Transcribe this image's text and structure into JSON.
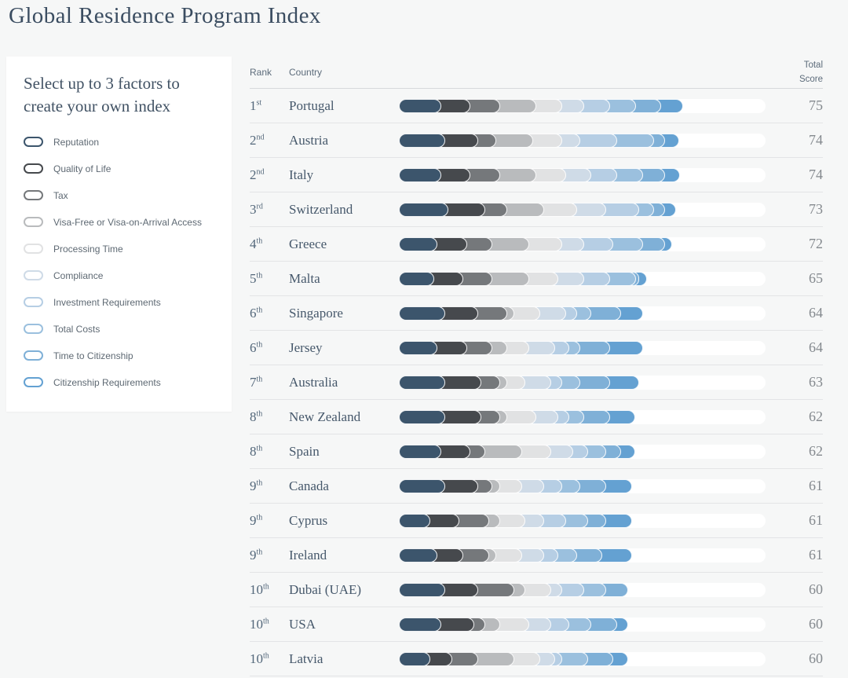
{
  "page": {
    "title": "Global Residence Program Index",
    "background": "#f6f7f7"
  },
  "sidebar": {
    "heading": "Select up to 3 factors to create your own index",
    "factors": [
      {
        "label": "Reputation",
        "color": "#3c556c"
      },
      {
        "label": "Quality of Life",
        "color": "#46494d"
      },
      {
        "label": "Tax",
        "color": "#75787b"
      },
      {
        "label": "Visa-Free or Visa-on-Arrival Access",
        "color": "#b9bbbd"
      },
      {
        "label": "Processing Time",
        "color": "#e1e2e3"
      },
      {
        "label": "Compliance",
        "color": "#cfdbe7"
      },
      {
        "label": "Investment Requirements",
        "color": "#b6cee4"
      },
      {
        "label": "Total Costs",
        "color": "#9bc0de"
      },
      {
        "label": "Time to Citizenship",
        "color": "#7fb0d7"
      },
      {
        "label": "Citizenship Requirements",
        "color": "#64a1d2"
      }
    ]
  },
  "table": {
    "headers": {
      "rank": "Rank",
      "country": "Country",
      "total_score": "Total Score"
    },
    "max_score": 100,
    "rows": [
      {
        "rank": "1",
        "ordinal": "st",
        "country": "Portugal",
        "score": 75,
        "segments": [
          9,
          8,
          8,
          10,
          7,
          6,
          7,
          7,
          7,
          6
        ]
      },
      {
        "rank": "2",
        "ordinal": "nd",
        "country": "Austria",
        "score": 74,
        "segments": [
          10,
          9,
          5,
          10,
          8,
          5,
          10,
          10,
          3,
          4
        ]
      },
      {
        "rank": "2",
        "ordinal": "nd",
        "country": "Italy",
        "score": 74,
        "segments": [
          9,
          8,
          8,
          10,
          8,
          7,
          7,
          7,
          6,
          4
        ]
      },
      {
        "rank": "3",
        "ordinal": "rd",
        "country": "Switzerland",
        "score": 73,
        "segments": [
          11,
          10,
          6,
          10,
          9,
          8,
          9,
          4,
          3,
          3
        ]
      },
      {
        "rank": "4",
        "ordinal": "th",
        "country": "Greece",
        "score": 72,
        "segments": [
          8,
          8,
          7,
          10,
          9,
          6,
          8,
          8,
          6,
          2
        ]
      },
      {
        "rank": "5",
        "ordinal": "th",
        "country": "Malta",
        "score": 65,
        "segments": [
          7,
          8,
          8,
          10,
          8,
          7,
          7,
          7,
          1,
          2
        ]
      },
      {
        "rank": "6",
        "ordinal": "th",
        "country": "Singapore",
        "score": 64,
        "segments": [
          10,
          9,
          8,
          2,
          7,
          7,
          3,
          4,
          8,
          6
        ]
      },
      {
        "rank": "6",
        "ordinal": "th",
        "country": "Jersey",
        "score": 64,
        "segments": [
          8,
          8,
          7,
          4,
          6,
          7,
          4,
          3,
          8,
          9
        ]
      },
      {
        "rank": "7",
        "ordinal": "th",
        "country": "Australia",
        "score": 63,
        "segments": [
          10,
          10,
          5,
          2,
          5,
          7,
          3,
          5,
          8,
          8
        ]
      },
      {
        "rank": "8",
        "ordinal": "th",
        "country": "New Zealand",
        "score": 62,
        "segments": [
          10,
          10,
          5,
          2,
          8,
          6,
          3,
          4,
          7,
          7
        ]
      },
      {
        "rank": "8",
        "ordinal": "th",
        "country": "Spain",
        "score": 62,
        "segments": [
          9,
          8,
          4,
          10,
          8,
          6,
          4,
          5,
          4,
          4
        ]
      },
      {
        "rank": "9",
        "ordinal": "th",
        "country": "Canada",
        "score": 61,
        "segments": [
          10,
          9,
          4,
          2,
          6,
          6,
          5,
          5,
          7,
          7
        ]
      },
      {
        "rank": "9",
        "ordinal": "th",
        "country": "Cyprus",
        "score": 61,
        "segments": [
          6,
          8,
          8,
          3,
          7,
          5,
          6,
          6,
          5,
          7
        ]
      },
      {
        "rank": "9",
        "ordinal": "th",
        "country": "Ireland",
        "score": 61,
        "segments": [
          8,
          7,
          7,
          2,
          7,
          6,
          4,
          5,
          7,
          8
        ]
      },
      {
        "rank": "10",
        "ordinal": "th",
        "country": "Dubai (UAE)",
        "score": 60,
        "segments": [
          10,
          9,
          10,
          3,
          7,
          3,
          6,
          6,
          6,
          0
        ]
      },
      {
        "rank": "10",
        "ordinal": "th",
        "country": "USA",
        "score": 60,
        "segments": [
          9,
          9,
          3,
          4,
          8,
          6,
          5,
          6,
          7,
          3
        ]
      },
      {
        "rank": "10",
        "ordinal": "th",
        "country": "Latvia",
        "score": 60,
        "segments": [
          6,
          6,
          7,
          10,
          7,
          4,
          2,
          7,
          7,
          4
        ]
      }
    ]
  },
  "chart_data": {
    "type": "bar",
    "stacked": true,
    "orientation": "horizontal",
    "title": "Global Residence Program Index",
    "xlabel": "Total Score",
    "xlim": [
      0,
      100
    ],
    "categories": [
      "Portugal",
      "Austria",
      "Italy",
      "Switzerland",
      "Greece",
      "Malta",
      "Singapore",
      "Jersey",
      "Australia",
      "New Zealand",
      "Spain",
      "Canada",
      "Cyprus",
      "Ireland",
      "Dubai (UAE)",
      "USA",
      "Latvia"
    ],
    "totals": [
      75,
      74,
      74,
      73,
      72,
      65,
      64,
      64,
      63,
      62,
      62,
      61,
      61,
      61,
      60,
      60,
      60
    ],
    "series": [
      {
        "name": "Reputation",
        "color": "#3c556c",
        "values": [
          9,
          10,
          9,
          11,
          8,
          7,
          10,
          8,
          10,
          10,
          9,
          10,
          6,
          8,
          10,
          9,
          6
        ]
      },
      {
        "name": "Quality of Life",
        "color": "#46494d",
        "values": [
          8,
          9,
          8,
          10,
          8,
          8,
          9,
          8,
          10,
          10,
          8,
          9,
          8,
          7,
          9,
          9,
          6
        ]
      },
      {
        "name": "Tax",
        "color": "#75787b",
        "values": [
          8,
          5,
          8,
          6,
          7,
          8,
          8,
          7,
          5,
          5,
          4,
          4,
          8,
          7,
          10,
          3,
          7
        ]
      },
      {
        "name": "Visa-Free or Visa-on-Arrival Access",
        "color": "#b9bbbd",
        "values": [
          10,
          10,
          10,
          10,
          10,
          10,
          2,
          4,
          2,
          2,
          10,
          2,
          3,
          2,
          3,
          4,
          10
        ]
      },
      {
        "name": "Processing Time",
        "color": "#e1e2e3",
        "values": [
          7,
          8,
          8,
          9,
          9,
          8,
          7,
          6,
          5,
          8,
          8,
          6,
          7,
          7,
          7,
          8,
          7
        ]
      },
      {
        "name": "Compliance",
        "color": "#cfdbe7",
        "values": [
          6,
          5,
          7,
          8,
          6,
          7,
          7,
          7,
          7,
          6,
          6,
          6,
          5,
          6,
          3,
          6,
          4
        ]
      },
      {
        "name": "Investment Requirements",
        "color": "#b6cee4",
        "values": [
          7,
          10,
          7,
          9,
          8,
          7,
          3,
          4,
          3,
          3,
          4,
          5,
          6,
          4,
          6,
          5,
          2
        ]
      },
      {
        "name": "Total Costs",
        "color": "#9bc0de",
        "values": [
          7,
          10,
          7,
          4,
          8,
          7,
          4,
          3,
          5,
          4,
          5,
          5,
          6,
          5,
          6,
          6,
          7
        ]
      },
      {
        "name": "Time to Citizenship",
        "color": "#7fb0d7",
        "values": [
          7,
          3,
          6,
          3,
          6,
          1,
          8,
          8,
          8,
          7,
          4,
          7,
          5,
          7,
          6,
          7,
          7
        ]
      },
      {
        "name": "Citizenship Requirements",
        "color": "#64a1d2",
        "values": [
          6,
          4,
          4,
          3,
          2,
          2,
          6,
          9,
          8,
          7,
          4,
          7,
          7,
          8,
          0,
          3,
          4
        ]
      }
    ],
    "legend_position": "left-sidebar",
    "grid": false
  }
}
